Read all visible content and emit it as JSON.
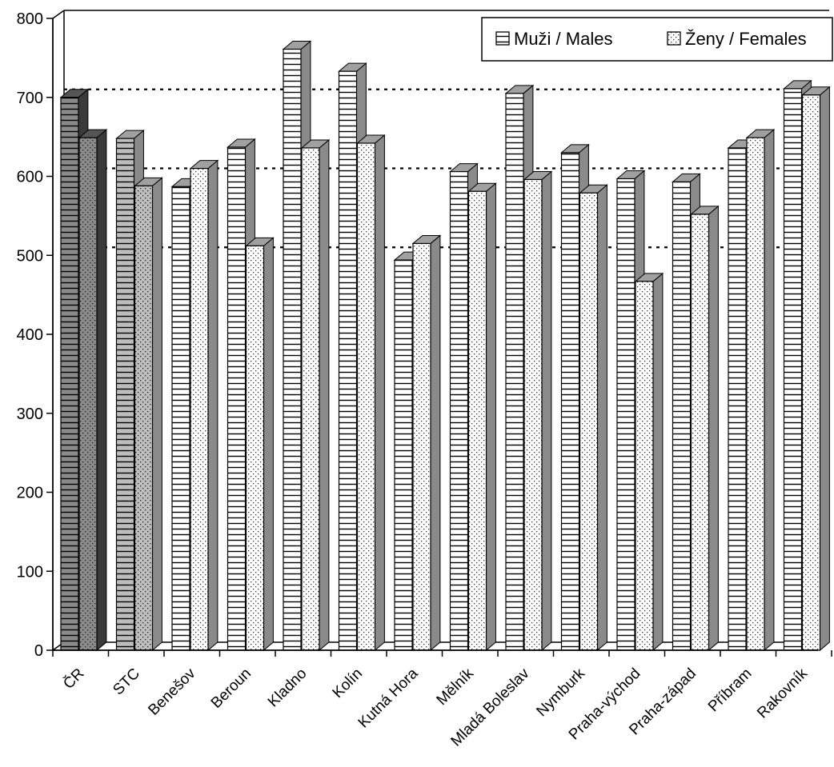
{
  "chart_data": {
    "type": "bar",
    "title": "",
    "xlabel": "",
    "ylabel": "",
    "ylim": [
      0,
      800
    ],
    "yticks": [
      "0",
      "100",
      "200",
      "300",
      "400",
      "500",
      "600",
      "700",
      "800"
    ],
    "grid": "dashed horizontal at 500, 600, 700",
    "legend_position": "top-right",
    "categories": [
      "ČR",
      "STC",
      "Benešov",
      "Beroun",
      "Kladno",
      "Kolín",
      "Kutná Hora",
      "Mělník",
      "Mladá Boleslav",
      "Nymburk",
      "Praha-východ",
      "Praha-západ",
      "Příbram",
      "Rakovník"
    ],
    "series": [
      {
        "name": "Muži / Males",
        "pattern": "horizontal-stripes",
        "values": [
          700,
          648,
          587,
          637,
          761,
          733,
          494,
          606,
          705,
          630,
          597,
          593,
          636,
          711
        ]
      },
      {
        "name": "Ženy / Females",
        "pattern": "dots",
        "values": [
          649,
          588,
          610,
          512,
          636,
          642,
          515,
          581,
          596,
          579,
          467,
          552,
          649,
          703
        ]
      }
    ],
    "highlight_colors": {
      "ČR": "#8a8a8a",
      "STC": "#bdbdbd",
      "default": "#ffffff"
    }
  }
}
